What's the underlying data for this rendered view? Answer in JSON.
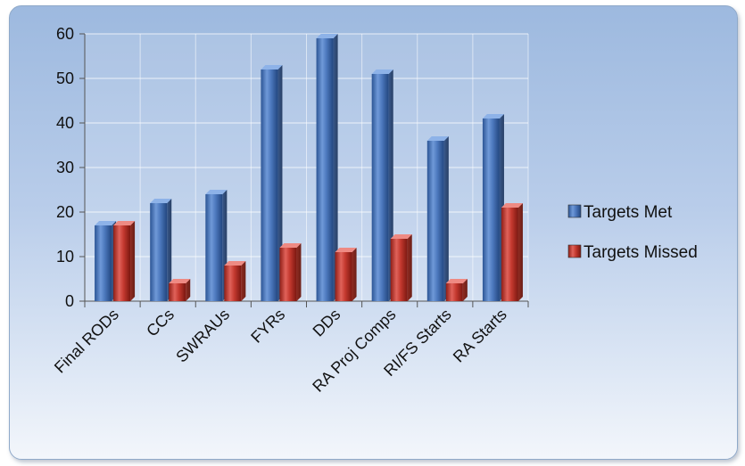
{
  "chart_data": {
    "type": "bar",
    "title": "",
    "xlabel": "",
    "ylabel": "",
    "categories": [
      "Final RODs",
      "CCs",
      "SWRAUs",
      "FYRs",
      "DDs",
      "RA Proj Comps",
      "RI/FS Starts",
      "RA Starts"
    ],
    "series": [
      {
        "name": "Targets Met",
        "values": [
          17,
          22,
          24,
          52,
          59,
          51,
          36,
          41
        ],
        "color": "#4a74b8"
      },
      {
        "name": "Targets Missed",
        "values": [
          17,
          4,
          8,
          12,
          11,
          14,
          4,
          21
        ],
        "color": "#c0392b"
      }
    ],
    "ylim": [
      0,
      60
    ],
    "yticks": [
      0,
      10,
      20,
      30,
      40,
      50,
      60
    ],
    "grid": true,
    "legend_position": "right"
  }
}
